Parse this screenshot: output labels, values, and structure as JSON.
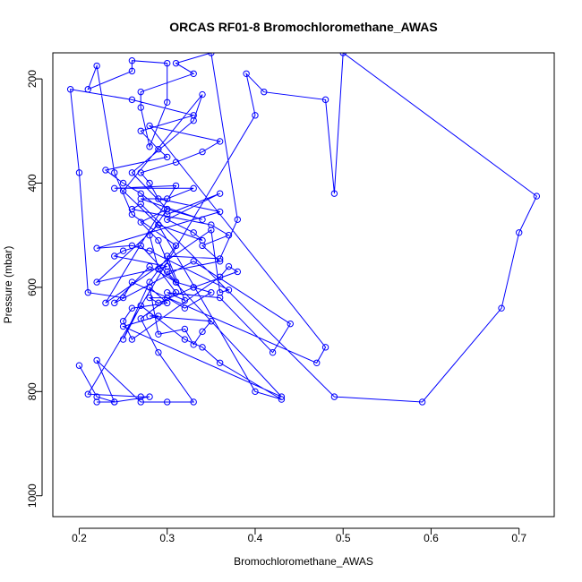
{
  "chart_data": {
    "type": "line",
    "title": "ORCAS RF01-8 Bromochloromethane_AWAS",
    "xlabel": "Bromochloromethane_AWAS",
    "ylabel": "Pressure (mbar)",
    "xlim": [
      0.17,
      0.74
    ],
    "ylim": [
      1040,
      150
    ],
    "y_reversed": true,
    "xticks": [
      0.2,
      0.3,
      0.4,
      0.5,
      0.6,
      0.7
    ],
    "xtick_labels": [
      "0.2",
      "0.3",
      "0.4",
      "0.5",
      "0.6",
      "0.7"
    ],
    "yticks": [
      200,
      400,
      600,
      800,
      1000
    ],
    "ytick_labels": [
      "200",
      "400",
      "600",
      "800",
      "1000"
    ],
    "grid": false,
    "legend": "none",
    "series": [
      {
        "color": "#0000ff",
        "marker": "open-circle",
        "x": [
          0.22,
          0.24,
          0.22,
          0.27,
          0.3,
          0.33,
          0.29,
          0.27,
          0.31,
          0.29,
          0.28,
          0.3,
          0.26,
          0.33,
          0.34,
          0.25,
          0.29,
          0.4,
          0.43,
          0.36,
          0.34,
          0.32,
          0.27,
          0.25,
          0.28,
          0.31,
          0.26,
          0.24,
          0.22,
          0.21,
          0.26,
          0.26,
          0.3,
          0.3,
          0.28,
          0.27,
          0.27,
          0.33,
          0.31,
          0.35,
          0.38,
          0.36,
          0.3,
          0.32,
          0.3,
          0.36,
          0.42,
          0.44,
          0.33,
          0.24,
          0.28,
          0.31,
          0.29,
          0.27,
          0.3,
          0.34,
          0.27,
          0.3,
          0.33,
          0.24,
          0.31,
          0.23,
          0.35,
          0.36,
          0.37,
          0.28,
          0.26,
          0.22,
          0.36,
          0.29,
          0.28,
          0.27,
          0.31,
          0.34,
          0.36,
          0.28,
          0.48,
          0.47,
          0.26,
          0.25,
          0.21,
          0.2,
          0.19,
          0.26,
          0.33,
          0.27,
          0.29,
          0.3,
          0.23,
          0.25,
          0.27,
          0.3,
          0.36,
          0.3,
          0.33,
          0.34,
          0.29,
          0.22,
          0.3,
          0.24,
          0.25,
          0.27,
          0.43,
          0.25,
          0.29,
          0.28,
          0.35,
          0.34,
          0.33,
          0.32,
          0.29,
          0.28,
          0.3,
          0.26,
          0.25,
          0.26,
          0.36,
          0.37,
          0.38,
          0.33,
          0.35,
          0.32,
          0.3,
          0.28,
          0.29,
          0.33,
          0.31,
          0.3,
          0.36,
          0.34,
          0.37,
          0.35,
          0.26,
          0.27,
          0.49,
          0.59,
          0.68,
          0.7,
          0.72,
          0.5,
          0.49,
          0.48,
          0.41,
          0.39,
          0.4,
          0.21,
          0.27,
          0.28,
          0.24,
          0.22,
          0.2
        ],
        "y": [
          820,
          820,
          740,
          820,
          820,
          820,
          725,
          660,
          610,
          565,
          500,
          450,
          380,
          280,
          230,
          415,
          480,
          800,
          815,
          745,
          715,
          700,
          635,
          700,
          590,
          520,
          460,
          380,
          175,
          220,
          185,
          165,
          170,
          245,
          330,
          255,
          225,
          190,
          170,
          150,
          470,
          545,
          540,
          625,
          610,
          620,
          725,
          670,
          550,
          630,
          560,
          590,
          510,
          475,
          450,
          470,
          430,
          430,
          410,
          410,
          405,
          630,
          490,
          610,
          605,
          530,
          520,
          525,
          455,
          430,
          400,
          380,
          360,
          340,
          320,
          290,
          715,
          745,
          590,
          620,
          610,
          380,
          220,
          240,
          270,
          300,
          335,
          350,
          375,
          400,
          420,
          460,
          420,
          470,
          495,
          510,
          480,
          590,
          560,
          540,
          530,
          520,
          810,
          675,
          655,
          655,
          665,
          685,
          710,
          680,
          690,
          600,
          630,
          640,
          665,
          700,
          580,
          560,
          570,
          600,
          610,
          640,
          620,
          620,
          630,
          600,
          590,
          570,
          550,
          520,
          500,
          480,
          450,
          440,
          810,
          820,
          640,
          495,
          425,
          150,
          420,
          240,
          225,
          190,
          270,
          805,
          810,
          810,
          820,
          810,
          750
        ]
      }
    ]
  }
}
